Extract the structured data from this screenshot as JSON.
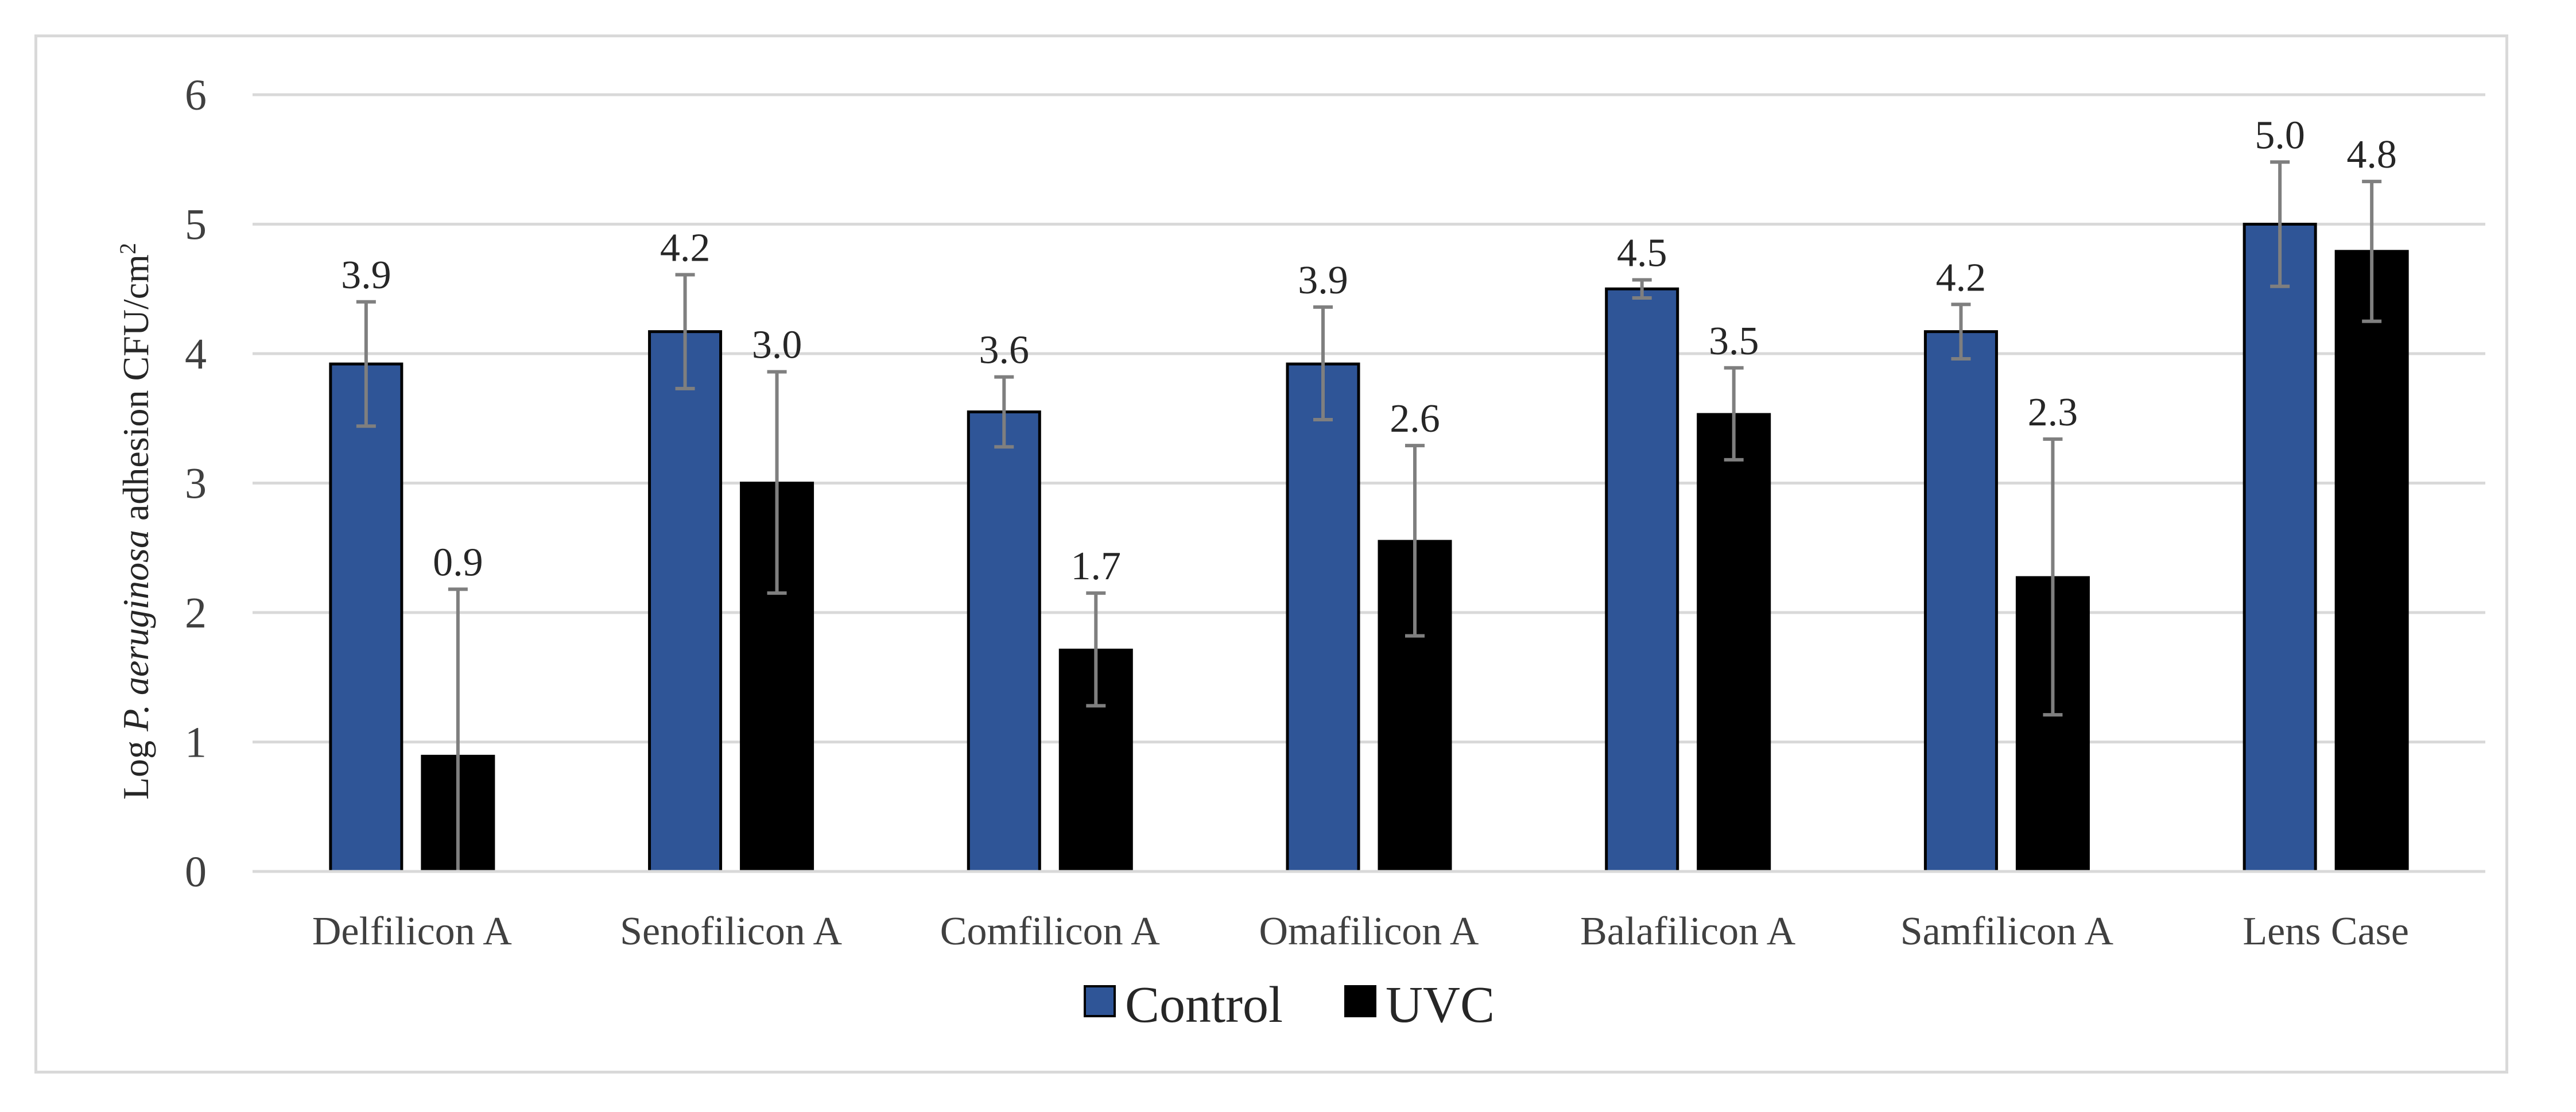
{
  "chart_data": {
    "type": "bar",
    "title": "",
    "xlabel": "",
    "ylabel": {
      "prefix": "Log ",
      "organism": "P. aeruginosa",
      "suffix": " adhesion CFU/cm",
      "superscript": "2"
    },
    "ylim": [
      0,
      6
    ],
    "yticks": [
      "0",
      "1",
      "2",
      "3",
      "4",
      "5",
      "6"
    ],
    "grid": true,
    "legend_position": "bottom",
    "categories": [
      "Delfilicon A",
      "Senofilicon A",
      "Comfilicon A",
      "Omafilicon A",
      "Balafilicon A",
      "Samfilicon A",
      "Lens Case"
    ],
    "series": [
      {
        "name": "Control",
        "color": "#2f5597",
        "values": [
          3.92,
          4.17,
          3.55,
          3.92,
          4.5,
          4.17,
          5.0
        ],
        "labels": [
          "3.9",
          "4.2",
          "3.6",
          "3.9",
          "4.5",
          "4.2",
          "5.0"
        ],
        "error_low": [
          3.44,
          3.73,
          3.28,
          3.49,
          4.43,
          3.96,
          4.52
        ],
        "error_high": [
          4.4,
          4.61,
          3.82,
          4.36,
          4.57,
          4.38,
          5.48
        ]
      },
      {
        "name": "UVC",
        "color": "#000000",
        "values": [
          0.89,
          3.0,
          1.71,
          2.55,
          3.53,
          2.27,
          4.79
        ],
        "labels": [
          "0.9",
          "3.0",
          "1.7",
          "2.6",
          "3.5",
          "2.3",
          "4.8"
        ],
        "error_low": [
          0.0,
          2.15,
          1.28,
          1.82,
          3.18,
          1.21,
          4.25
        ],
        "error_high": [
          2.18,
          3.86,
          2.15,
          3.29,
          3.89,
          3.34,
          5.33
        ]
      }
    ]
  }
}
